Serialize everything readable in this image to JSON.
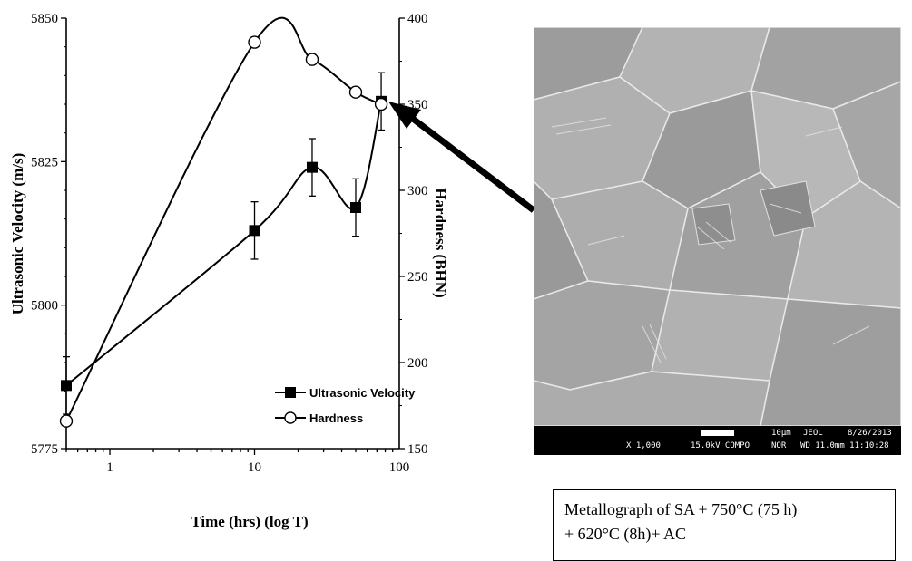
{
  "chart_data": {
    "type": "line",
    "x_scale": "log",
    "xlim": [
      0.5,
      100
    ],
    "x_ticks": [
      "1",
      "10",
      "100"
    ],
    "xlabel": "Time (hrs) (log T)",
    "left_axis": {
      "label": "Ultrasonic Velocity (m/s)",
      "ylim": [
        5775,
        5850
      ],
      "ticks": [
        "5775",
        "5800",
        "5825",
        "5850"
      ]
    },
    "right_axis": {
      "label": "Hardness (BHN)",
      "ylim": [
        150,
        400
      ],
      "ticks": [
        "150",
        "200",
        "250",
        "300",
        "350",
        "400"
      ]
    },
    "series": [
      {
        "name": "Ultrasonic Velocity",
        "axis": "left",
        "marker": "filled-square",
        "x": [
          0.5,
          10,
          25,
          50,
          75
        ],
        "y": [
          5786,
          5813,
          5824,
          5817,
          5835.5
        ],
        "error": [
          5,
          5,
          5,
          5,
          5
        ]
      },
      {
        "name": "Hardness",
        "axis": "right",
        "marker": "open-circle",
        "x": [
          0.5,
          10,
          25,
          50,
          75
        ],
        "y": [
          166,
          386,
          376,
          357,
          350
        ]
      }
    ],
    "legend_position": "lower-right"
  },
  "micrograph": {
    "magnification": "X 1,000",
    "scale": "10μm",
    "brand": "JEOL",
    "date": "8/26/2013",
    "voltage_mode": "15.0kV COMPO",
    "mode": "NOR",
    "wd_time": "WD 11.0mm 11:10:28"
  },
  "caption": {
    "line1": "Metallograph of SA + 750°C (75 h)",
    "line2": "+ 620°C (8h)+ AC"
  }
}
